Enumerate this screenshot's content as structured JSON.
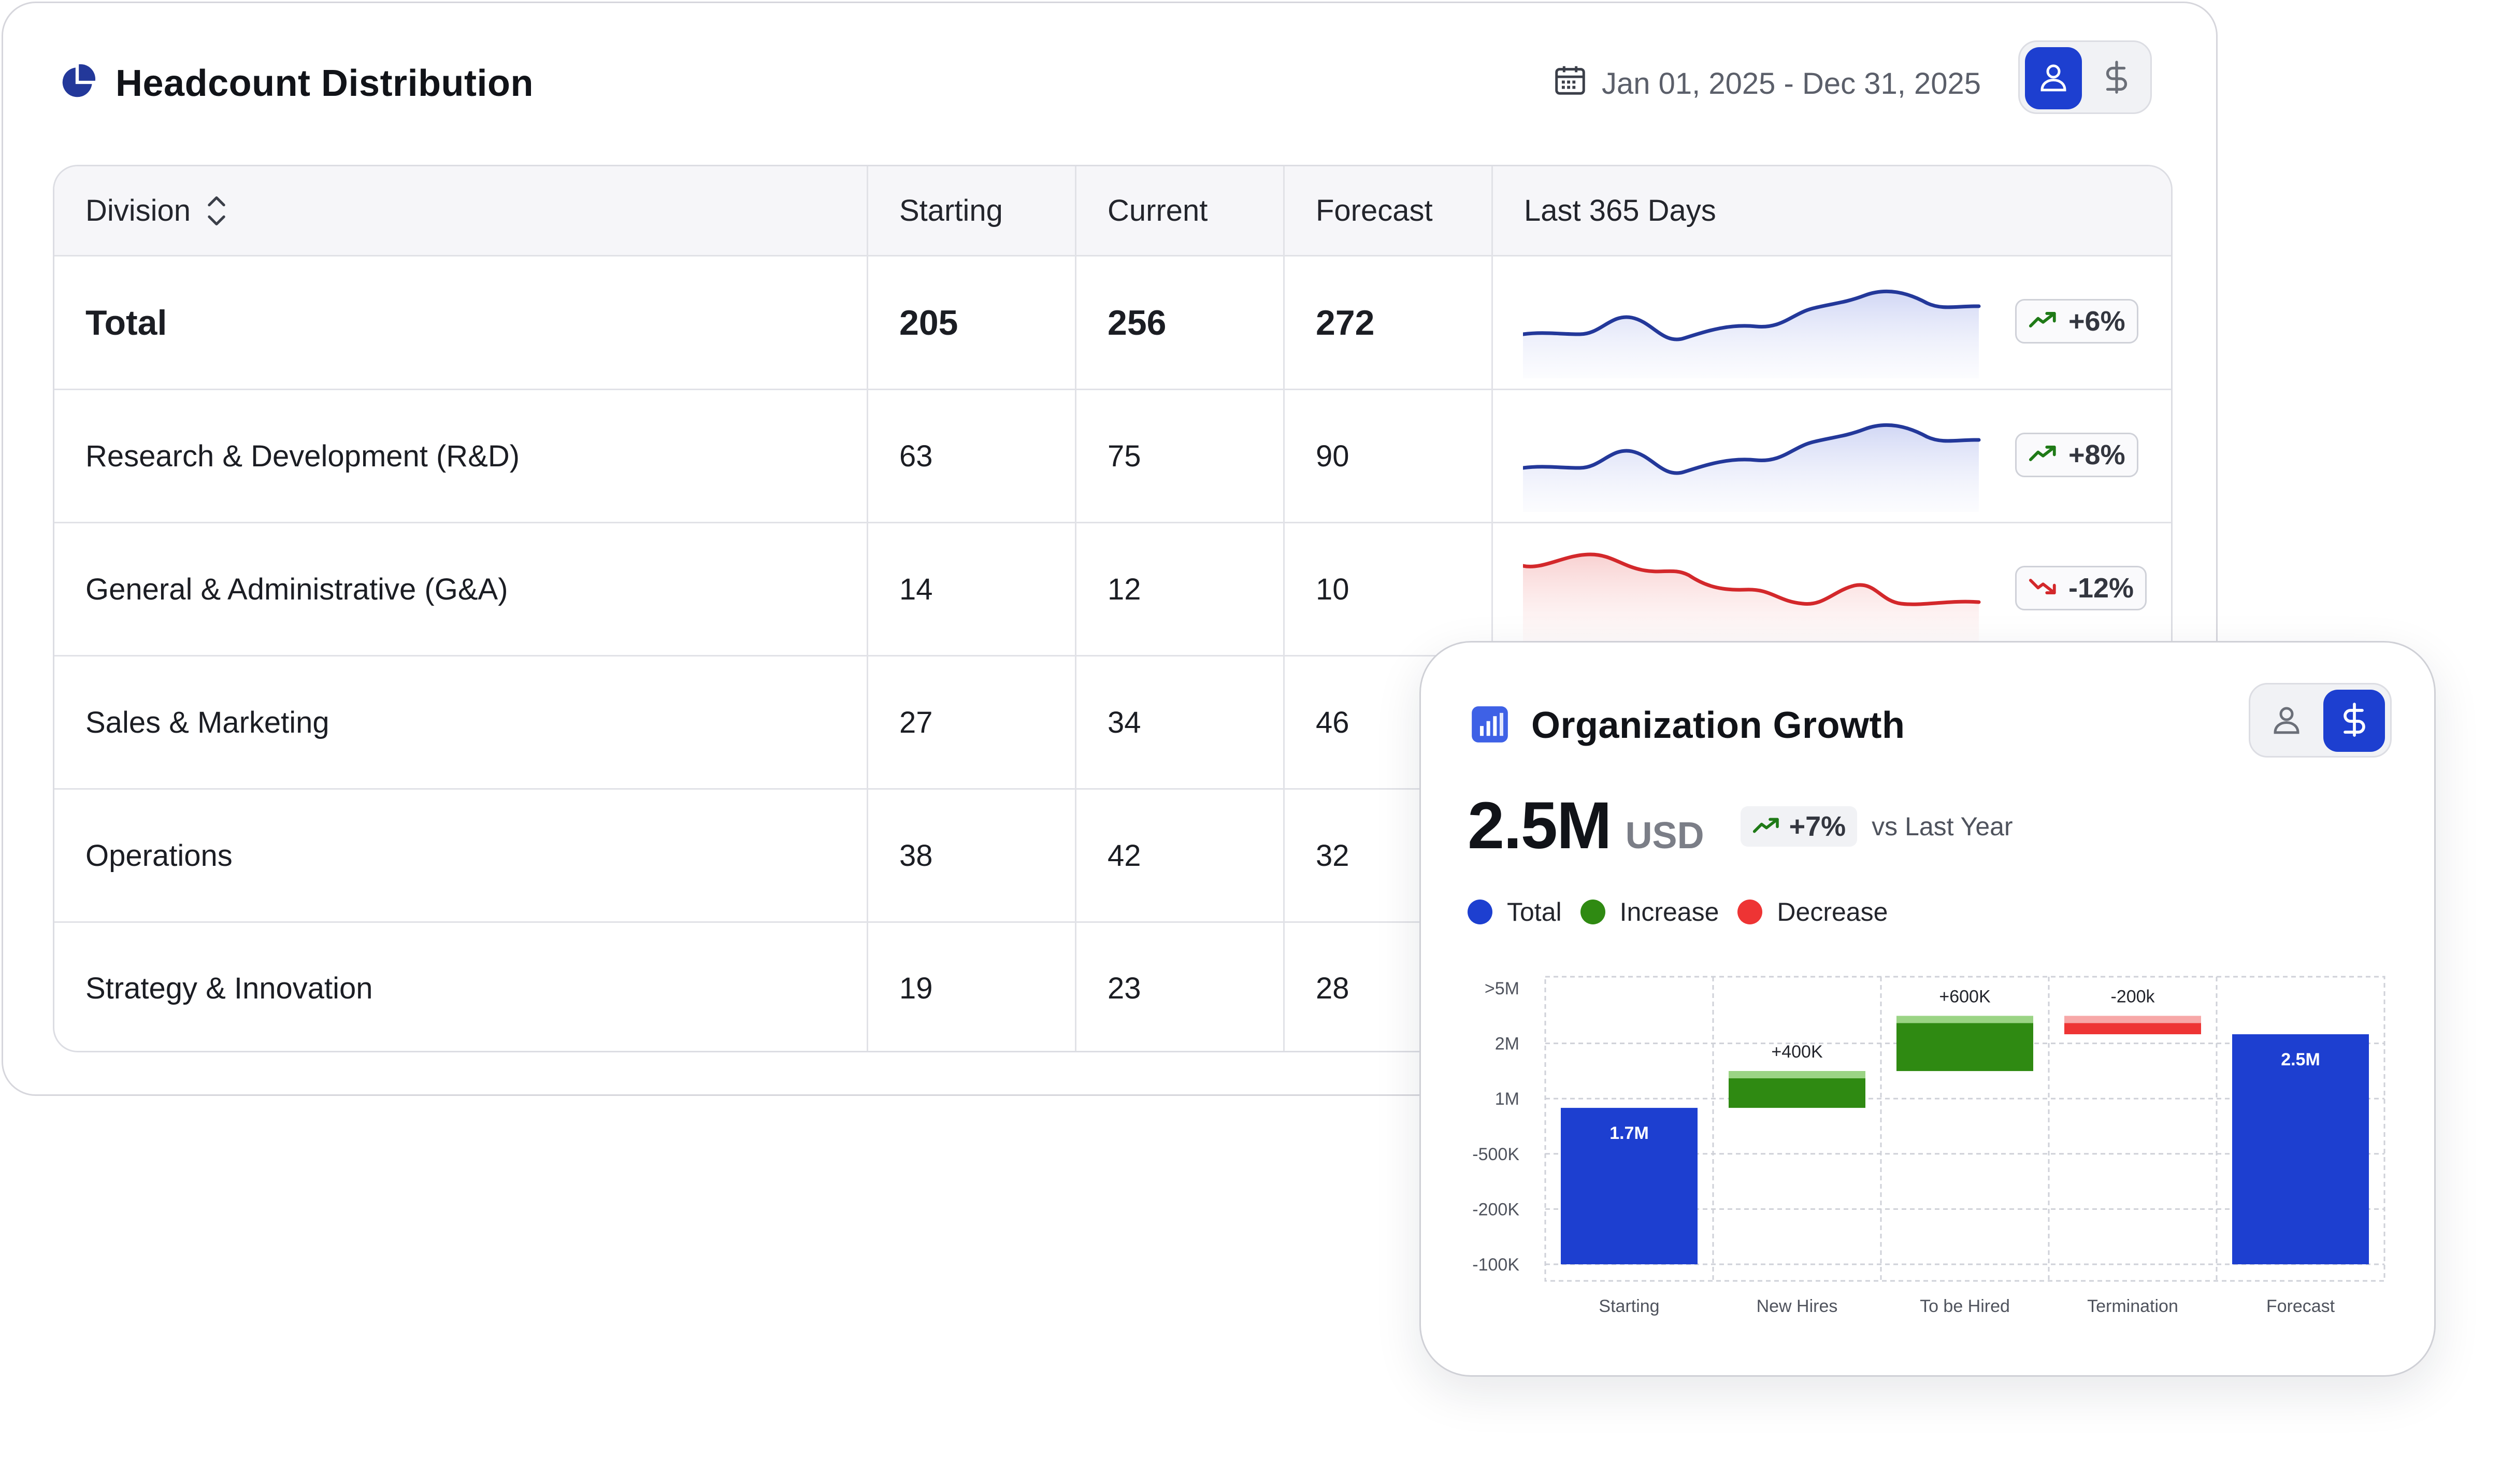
{
  "headcount": {
    "title": "Headcount Distribution",
    "date_range": "Jan 01, 2025 - Dec 31, 2025",
    "toggle": {
      "options": [
        "person-icon",
        "dollar-icon"
      ],
      "selected": "person-icon"
    },
    "table": {
      "columns": [
        "Division",
        "Starting",
        "Current",
        "Forecast",
        "Last 365 Days"
      ],
      "rows": [
        {
          "division": "Total",
          "starting": "205",
          "current": "256",
          "forecast": "272",
          "trend": "up",
          "change": "+6%"
        },
        {
          "division": "Research & Development (R&D)",
          "starting": "63",
          "current": "75",
          "forecast": "90",
          "trend": "up",
          "change": "+8%"
        },
        {
          "division": "General & Administrative (G&A)",
          "starting": "14",
          "current": "12",
          "forecast": "10",
          "trend": "down",
          "change": "-12%"
        },
        {
          "division": "Sales & Marketing",
          "starting": "27",
          "current": "34",
          "forecast": "46"
        },
        {
          "division": "Operations",
          "starting": "38",
          "current": "42",
          "forecast": "32"
        },
        {
          "division": "Strategy & Innovation",
          "starting": "19",
          "current": "23",
          "forecast": "28"
        }
      ]
    }
  },
  "growth": {
    "title": "Organization Growth",
    "toggle": {
      "options": [
        "person-icon",
        "dollar-icon"
      ],
      "selected": "dollar-icon"
    },
    "value": "2.5M",
    "unit": "USD",
    "delta": "+7%",
    "comparison": "vs Last Year",
    "legend": [
      {
        "label": "Total",
        "color": "#1d3fd0"
      },
      {
        "label": "Increase",
        "color": "#2f8a12"
      },
      {
        "label": "Decrease",
        "color": "#ee3434"
      }
    ]
  },
  "colors": {
    "accent": "#1d3fd0",
    "up_line": "#23389a",
    "down_line": "#d3282b",
    "increase": "#2f8a12",
    "decrease": "#ee3434"
  },
  "chart_data": {
    "type": "bar",
    "subtype": "waterfall",
    "categories": [
      "Starting",
      "New Hires",
      "To be Hired",
      "Termination",
      "Forecast"
    ],
    "values": [
      1.7,
      0.4,
      0.6,
      -0.2,
      2.5
    ],
    "kinds": [
      "total",
      "increase",
      "increase",
      "decrease",
      "total"
    ],
    "data_labels": [
      "1.7M",
      "+400K",
      "+600K",
      "-200k",
      "2.5M"
    ],
    "y_tick_labels": [
      ">5M",
      "2M",
      "1M",
      "-500K",
      "-200K",
      "-100K"
    ],
    "grid": true,
    "legend": "top-left"
  }
}
